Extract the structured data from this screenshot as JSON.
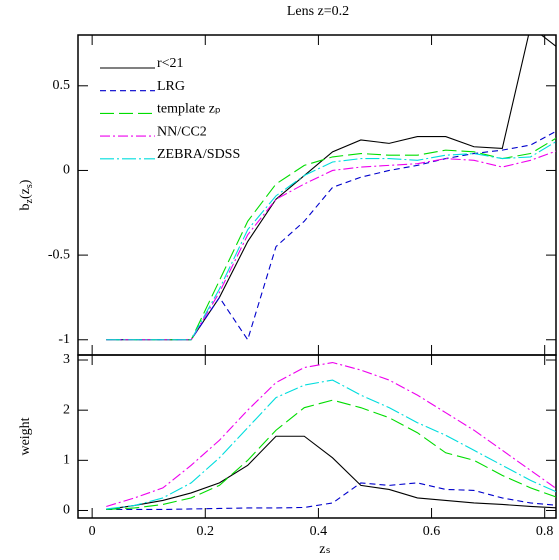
{
  "title": "Lens z=0.2",
  "chart_data": [
    {
      "type": "line",
      "y_label": [
        {
          "text": "b",
          "sub": false
        },
        {
          "text": "z",
          "sub": true
        },
        {
          "text": "(z",
          "sub": false
        },
        {
          "text": "s",
          "sub": true
        },
        {
          "text": ")",
          "sub": false
        }
      ],
      "x": [
        0.025,
        0.075,
        0.125,
        0.175,
        0.225,
        0.275,
        0.325,
        0.375,
        0.425,
        0.475,
        0.525,
        0.575,
        0.625,
        0.675,
        0.725,
        0.775,
        0.825
      ],
      "xlim": [
        -0.025,
        0.82
      ],
      "xticks": [
        0,
        0.2,
        0.4,
        0.6,
        0.8
      ],
      "ylim": [
        -1.09,
        0.8
      ],
      "yticks": [
        -1,
        -0.5,
        0,
        0.5
      ],
      "legend": "upper left",
      "series": [
        {
          "name": "r<21",
          "color": "#000000",
          "dash": "none",
          "values": [
            -1,
            -1,
            -1,
            -1,
            -0.75,
            -0.42,
            -0.17,
            -0.03,
            0.11,
            0.18,
            0.16,
            0.2,
            0.2,
            0.14,
            0.13,
            0.85,
            0.72
          ]
        },
        {
          "name": "LRG",
          "color": "#0000cc",
          "dash": "6 4",
          "values": [
            -1,
            -1,
            -1,
            -1,
            -0.75,
            -1.0,
            -0.45,
            -0.3,
            -0.1,
            -0.04,
            0.0,
            0.03,
            0.07,
            0.1,
            0.12,
            0.15,
            0.24
          ]
        },
        {
          "name": "template zₚ",
          "color": "#00dd00",
          "dash": "14 5",
          "values": [
            -1,
            -1,
            -1,
            -1,
            -0.65,
            -0.3,
            -0.08,
            0.03,
            0.08,
            0.1,
            0.09,
            0.09,
            0.12,
            0.11,
            0.07,
            0.1,
            0.2
          ]
        },
        {
          "name": "NN/CC2",
          "color": "#ee00ee",
          "dash": "10 3 2 3",
          "values": [
            -1,
            -1,
            -1,
            -1,
            -0.72,
            -0.38,
            -0.17,
            -0.08,
            0.0,
            0.02,
            0.03,
            0.04,
            0.07,
            0.06,
            0.02,
            0.06,
            0.12
          ]
        },
        {
          "name": "ZEBRA/SDSS",
          "color": "#00dddd",
          "dash": "14 3 2 3",
          "values": [
            -1,
            -1,
            -1,
            -1,
            -0.7,
            -0.35,
            -0.15,
            -0.03,
            0.05,
            0.07,
            0.07,
            0.06,
            0.09,
            0.1,
            0.07,
            0.08,
            0.18
          ]
        }
      ]
    },
    {
      "type": "line",
      "y_label": [
        {
          "text": "weight",
          "sub": false
        }
      ],
      "x_label": "zₛ",
      "x": [
        0.025,
        0.075,
        0.125,
        0.175,
        0.225,
        0.275,
        0.325,
        0.375,
        0.425,
        0.475,
        0.525,
        0.575,
        0.625,
        0.675,
        0.725,
        0.775,
        0.825
      ],
      "xlim": [
        -0.025,
        0.82
      ],
      "xticks": [
        0,
        0.2,
        0.4,
        0.6,
        0.8
      ],
      "ylim": [
        -0.15,
        3.1
      ],
      "yticks": [
        0,
        1,
        2,
        3
      ],
      "series": [
        {
          "name": "r<21",
          "color": "#000000",
          "dash": "none",
          "values": [
            0.02,
            0.1,
            0.2,
            0.35,
            0.55,
            0.9,
            1.48,
            1.48,
            1.05,
            0.5,
            0.42,
            0.25,
            0.2,
            0.15,
            0.12,
            0.08,
            0.05
          ]
        },
        {
          "name": "LRG",
          "color": "#0000cc",
          "dash": "6 4",
          "values": [
            0.02,
            0.02,
            0.02,
            0.03,
            0.04,
            0.05,
            0.05,
            0.06,
            0.15,
            0.55,
            0.5,
            0.55,
            0.42,
            0.4,
            0.25,
            0.15,
            0.1
          ]
        },
        {
          "name": "template zₚ",
          "color": "#00dd00",
          "dash": "14 5",
          "values": [
            0.02,
            0.05,
            0.12,
            0.25,
            0.5,
            1.0,
            1.6,
            2.05,
            2.2,
            2.05,
            1.85,
            1.55,
            1.15,
            1.0,
            0.7,
            0.45,
            0.25
          ]
        },
        {
          "name": "NN/CC2",
          "color": "#ee00ee",
          "dash": "10 3 2 3",
          "values": [
            0.08,
            0.25,
            0.45,
            0.9,
            1.4,
            2.0,
            2.55,
            2.85,
            2.95,
            2.8,
            2.6,
            2.3,
            1.95,
            1.6,
            1.2,
            0.8,
            0.4
          ]
        },
        {
          "name": "ZEBRA/SDSS",
          "color": "#00dddd",
          "dash": "14 3 2 3",
          "values": [
            0.03,
            0.1,
            0.25,
            0.55,
            1.05,
            1.65,
            2.25,
            2.5,
            2.6,
            2.3,
            2.05,
            1.75,
            1.5,
            1.2,
            0.9,
            0.6,
            0.35
          ]
        }
      ]
    }
  ]
}
